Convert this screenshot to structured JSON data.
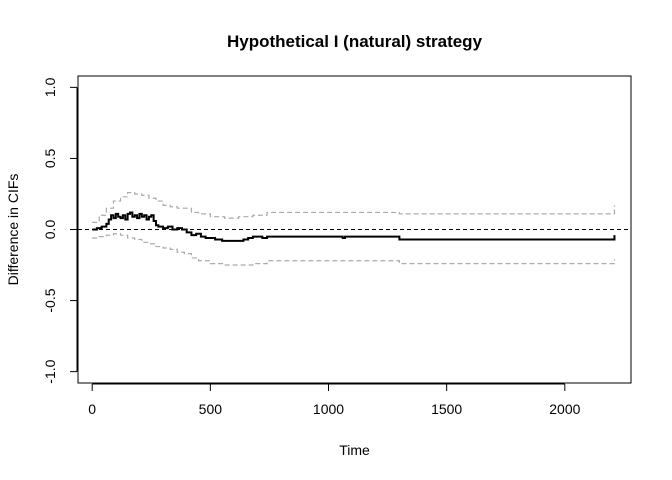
{
  "chart_data": {
    "type": "line",
    "title": "Hypothetical I (natural) strategy",
    "xlabel": "Time",
    "ylabel": "Difference in CIFs",
    "xlim": [
      -60,
      2280
    ],
    "ylim": [
      -1.08,
      1.08
    ],
    "x_ticks": [
      0,
      500,
      1000,
      1500,
      2000
    ],
    "x_tick_labels": [
      "0",
      "500",
      "1000",
      "1500",
      "2000"
    ],
    "y_ticks": [
      -1.0,
      -0.5,
      0.0,
      0.5,
      1.0
    ],
    "y_tick_labels": [
      "-1.0",
      "-0.5",
      "0.0",
      "0.5",
      "1.0"
    ],
    "grid": false,
    "legend": "none",
    "colors": {
      "estimate": "#000000",
      "ci": "#aaaaaa",
      "reference": "#000000"
    },
    "series": [
      {
        "role": "estimate",
        "x": [
          0,
          20,
          40,
          60,
          70,
          80,
          90,
          100,
          110,
          120,
          130,
          140,
          150,
          160,
          170,
          180,
          190,
          200,
          210,
          220,
          230,
          240,
          250,
          260,
          270,
          280,
          300,
          320,
          340,
          360,
          380,
          400,
          420,
          440,
          460,
          480,
          500,
          520,
          550,
          580,
          610,
          640,
          660,
          680,
          700,
          720,
          740,
          800,
          900,
          1000,
          1060,
          1070,
          1100,
          1200,
          1290,
          1300,
          1400,
          1600,
          1800,
          2000,
          2100,
          2200,
          2210
        ],
        "y": [
          0.0,
          0.01,
          0.02,
          0.04,
          0.07,
          0.1,
          0.08,
          0.11,
          0.09,
          0.08,
          0.1,
          0.07,
          0.11,
          0.12,
          0.09,
          0.1,
          0.08,
          0.11,
          0.09,
          0.1,
          0.07,
          0.09,
          0.1,
          0.06,
          0.03,
          0.02,
          0.01,
          0.02,
          0.0,
          0.01,
          0.0,
          -0.02,
          -0.04,
          -0.03,
          -0.05,
          -0.06,
          -0.06,
          -0.07,
          -0.08,
          -0.08,
          -0.08,
          -0.07,
          -0.06,
          -0.05,
          -0.05,
          -0.06,
          -0.05,
          -0.05,
          -0.05,
          -0.05,
          -0.06,
          -0.05,
          -0.05,
          -0.05,
          -0.05,
          -0.07,
          -0.07,
          -0.07,
          -0.07,
          -0.07,
          -0.07,
          -0.07,
          -0.04
        ]
      },
      {
        "role": "upper-ci",
        "x": [
          0,
          30,
          60,
          90,
          120,
          150,
          180,
          210,
          240,
          270,
          300,
          330,
          360,
          390,
          420,
          450,
          500,
          560,
          620,
          680,
          740,
          800,
          900,
          1000,
          1100,
          1200,
          1290,
          1300,
          1400,
          1600,
          1800,
          2000,
          2100,
          2200,
          2210
        ],
        "y": [
          0.05,
          0.1,
          0.15,
          0.2,
          0.23,
          0.26,
          0.25,
          0.24,
          0.22,
          0.2,
          0.17,
          0.16,
          0.15,
          0.15,
          0.12,
          0.11,
          0.09,
          0.08,
          0.09,
          0.1,
          0.12,
          0.12,
          0.12,
          0.12,
          0.12,
          0.12,
          0.12,
          0.11,
          0.11,
          0.11,
          0.11,
          0.11,
          0.11,
          0.11,
          0.17
        ]
      },
      {
        "role": "lower-ci",
        "x": [
          0,
          30,
          60,
          90,
          120,
          150,
          180,
          210,
          240,
          270,
          300,
          330,
          360,
          390,
          420,
          450,
          500,
          560,
          620,
          680,
          740,
          800,
          900,
          1000,
          1100,
          1200,
          1290,
          1300,
          1400,
          1600,
          1800,
          2000,
          2100,
          2200,
          2210
        ],
        "y": [
          -0.06,
          -0.05,
          -0.04,
          -0.03,
          -0.04,
          -0.06,
          -0.07,
          -0.09,
          -0.1,
          -0.12,
          -0.13,
          -0.14,
          -0.16,
          -0.17,
          -0.2,
          -0.22,
          -0.24,
          -0.25,
          -0.25,
          -0.24,
          -0.22,
          -0.22,
          -0.22,
          -0.22,
          -0.22,
          -0.22,
          -0.22,
          -0.24,
          -0.24,
          -0.24,
          -0.24,
          -0.24,
          -0.24,
          -0.24,
          -0.21
        ]
      }
    ],
    "reference_line": {
      "y": 0.0,
      "style": "dashed"
    }
  }
}
